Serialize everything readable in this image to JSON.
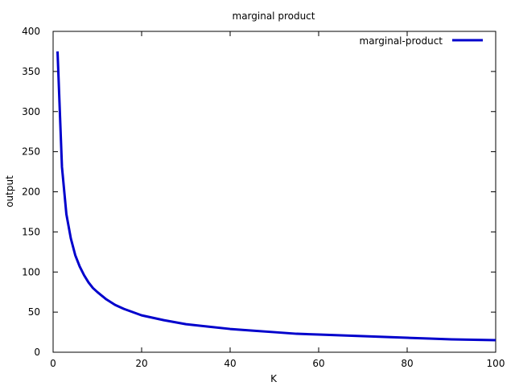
{
  "chart_data": {
    "type": "line",
    "title": "marginal product",
    "xlabel": "K",
    "ylabel": "output",
    "xlim": [
      0,
      100
    ],
    "ylim": [
      0,
      400
    ],
    "xticks": [
      "0",
      "20",
      "40",
      "60",
      "80",
      "100"
    ],
    "yticks": [
      "0",
      "50",
      "100",
      "150",
      "200",
      "250",
      "300",
      "350",
      "400"
    ],
    "grid": false,
    "legend_position": "top-right",
    "series": [
      {
        "name": "marginal-product",
        "color": "#0000cc",
        "x": [
          1,
          2,
          3,
          4,
          5,
          6,
          7,
          8,
          9,
          10,
          12,
          14,
          16,
          18,
          20,
          25,
          30,
          35,
          40,
          45,
          50,
          55,
          60,
          65,
          70,
          75,
          80,
          85,
          90,
          95,
          100
        ],
        "y": [
          375,
          231,
          172,
          142,
          121,
          107,
          96,
          87,
          80,
          75,
          66,
          59,
          54,
          50,
          46,
          40,
          35,
          32,
          29,
          27,
          25,
          23,
          22,
          21,
          20,
          19,
          18,
          17,
          16,
          15.5,
          15
        ]
      }
    ]
  }
}
